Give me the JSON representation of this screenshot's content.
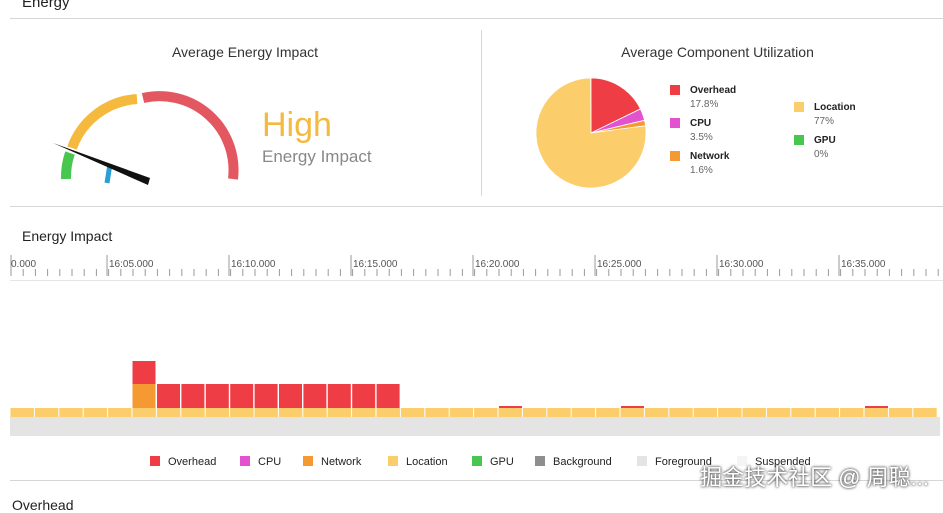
{
  "section": {
    "title": "Energy",
    "next_title": "Overhead"
  },
  "average_energy": {
    "title": "Average Energy Impact",
    "level": "High",
    "caption": "Energy Impact",
    "level_color": "#f5b93e"
  },
  "component_utilization": {
    "title": "Average Component Utilization",
    "items": [
      {
        "name": "Overhead",
        "value": "17.8%",
        "color": "#ee3d45",
        "fraction": 0.178
      },
      {
        "name": "CPU",
        "value": "3.5%",
        "color": "#e352cf",
        "fraction": 0.035
      },
      {
        "name": "Network",
        "value": "1.6%",
        "color": "#f59a32",
        "fraction": 0.016
      },
      {
        "name": "Location",
        "value": "77%",
        "color": "#fbcd6b",
        "fraction": 0.77
      },
      {
        "name": "GPU",
        "value": "0%",
        "color": "#47c74f",
        "fraction": 0.0
      }
    ]
  },
  "timeline": {
    "title": "Energy Impact",
    "ticks": [
      "0.000",
      "16:05.000",
      "16:10.000",
      "16:15.000",
      "16:20.000",
      "16:25.000",
      "16:30.000",
      "16:35.000"
    ]
  },
  "legend": [
    {
      "name": "Overhead",
      "color": "#ee3d45"
    },
    {
      "name": "CPU",
      "color": "#e352cf"
    },
    {
      "name": "Network",
      "color": "#f59a32"
    },
    {
      "name": "Location",
      "color": "#fbcd6b"
    },
    {
      "name": "GPU",
      "color": "#47c74f"
    },
    {
      "name": "Background",
      "color": "#8e8e8e"
    },
    {
      "name": "Foreground",
      "color": "#e4e4e4"
    },
    {
      "name": "Suspended",
      "color": "#f4f4f4"
    }
  ],
  "watermark": "掘金技术社区 @ 周聪..."
}
